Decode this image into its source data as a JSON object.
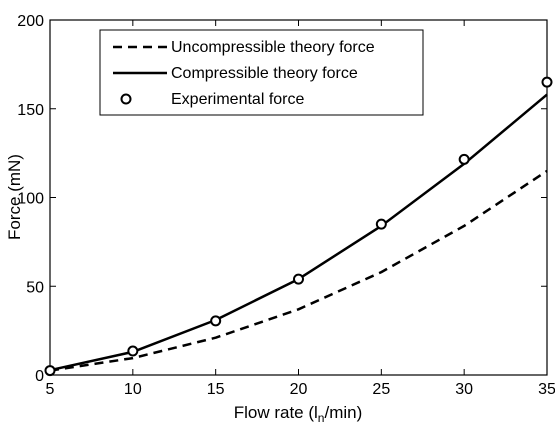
{
  "chart_data": {
    "type": "line",
    "xlabel": "Flow rate (l",
    "xlabel_sub": "n",
    "xlabel_suffix": "/min)",
    "ylabel": "Force (mN)",
    "xlim": [
      5,
      35
    ],
    "ylim": [
      0,
      200
    ],
    "xticks": [
      5,
      10,
      15,
      20,
      25,
      30,
      35
    ],
    "yticks": [
      0,
      50,
      100,
      150,
      200
    ],
    "grid": false,
    "legend_position": "top-left",
    "series": [
      {
        "name": "Uncompressible theory force",
        "style": "dashed",
        "color": "#000000",
        "x": [
          5,
          10,
          15,
          20,
          25,
          30,
          35
        ],
        "y": [
          2.5,
          9.5,
          21,
          37,
          58,
          84,
          115
        ]
      },
      {
        "name": "Compressible theory force",
        "style": "solid",
        "color": "#000000",
        "x": [
          5,
          10,
          15,
          20,
          25,
          30,
          35
        ],
        "y": [
          2.7,
          13,
          31,
          54,
          84,
          119,
          158
        ]
      },
      {
        "name": "Experimental force",
        "style": "marker-circle",
        "color": "#000000",
        "x": [
          5,
          10,
          15,
          20,
          25,
          30,
          35
        ],
        "y": [
          2.5,
          13.5,
          30.5,
          54,
          85,
          121.5,
          165
        ]
      }
    ]
  }
}
